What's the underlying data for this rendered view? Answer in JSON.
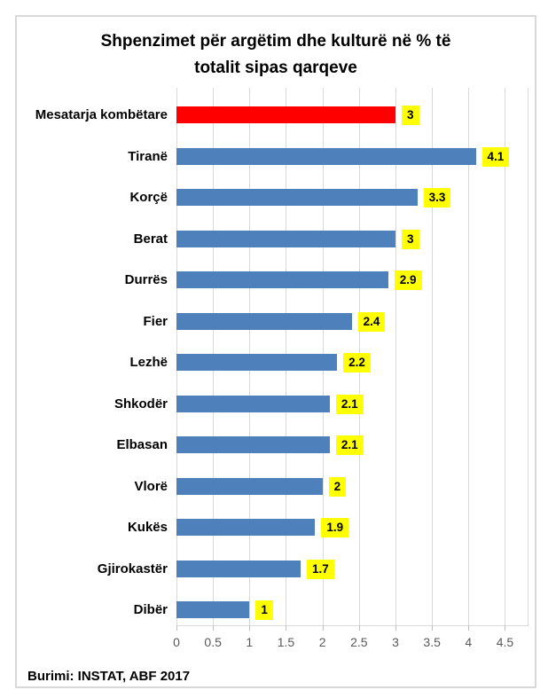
{
  "header": {
    "title_lines": [
      "Shpenzimet për argëtim dhe kulturë në % të",
      "totalit sipas qarqeve"
    ]
  },
  "footer": {
    "source": "Burimi: INSTAT, ABF 2017"
  },
  "colors": {
    "bar_blue": "#4E80BC",
    "bar_red": "#FF0000",
    "value_label_bg": "#FFFF00",
    "value_label_text": "#000000",
    "grid": "#D9D9D9",
    "axis_text": "#595959",
    "frame_border": "#D9D9D9"
  },
  "chart_data": {
    "type": "bar",
    "orientation": "horizontal",
    "title": "Shpenzimet për argëtim dhe kulturë në % të totalit sipas qarqeve",
    "categories": [
      "Mesatarja kombëtare",
      "Tiranë",
      "Korçë",
      "Berat",
      "Durrës",
      "Fier",
      "Lezhë",
      "Shkodër",
      "Elbasan",
      "Vlorë",
      "Kukës",
      "Gjirokastër",
      "Dibër"
    ],
    "values": [
      3,
      4.1,
      3.3,
      3,
      2.9,
      2.4,
      2.2,
      2.1,
      2.1,
      2,
      1.9,
      1.7,
      1
    ],
    "value_labels": [
      "3",
      "4.1",
      "3.3",
      "3",
      "2.9",
      "2.4",
      "2.2",
      "2.1",
      "2.1",
      "2",
      "1.9",
      "1.7",
      "1"
    ],
    "highlighted_category": "Mesatarja kombëtare",
    "highlighted_index": 0,
    "xlabel": "",
    "ylabel": "",
    "x_ticks": [
      0,
      0.5,
      1,
      1.5,
      2,
      2.5,
      3,
      3.5,
      4,
      4.5
    ],
    "x_tick_labels": [
      "0",
      "0.5",
      "1",
      "1.5",
      "2",
      "2.5",
      "3",
      "3.5",
      "4",
      "4.5"
    ],
    "xlim": [
      0,
      4.81
    ],
    "grid": true,
    "legend": false,
    "source": "Burimi: INSTAT, ABF 2017"
  }
}
